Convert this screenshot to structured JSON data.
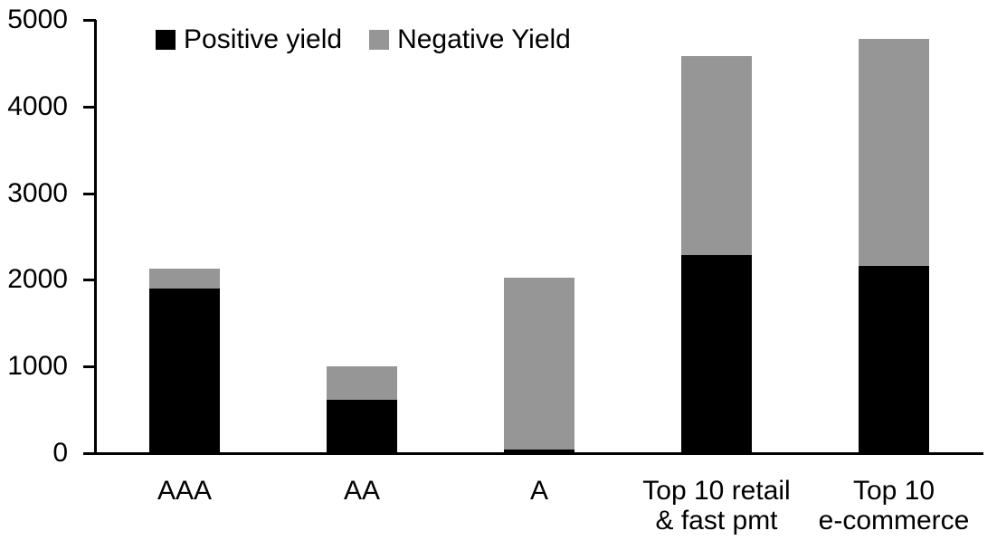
{
  "chart_data": {
    "type": "bar",
    "stacked": true,
    "title": "",
    "xlabel": "",
    "ylabel": "",
    "categories": [
      "AAA",
      "AA",
      "A",
      "Top 10 retail & fast pmt",
      "Top 10 e-commerce"
    ],
    "category_label_lines": [
      [
        "AAA"
      ],
      [
        "AA"
      ],
      [
        "A"
      ],
      [
        "Top 10 retail",
        "& fast pmt"
      ],
      [
        "Top 10",
        "e-commerce"
      ]
    ],
    "series": [
      {
        "name": "Positive yield",
        "color": "#000000",
        "values": [
          1900,
          620,
          45,
          2290,
          2160
        ]
      },
      {
        "name": "Negative Yield",
        "color": "#969696",
        "values": [
          230,
          385,
          1985,
          2290,
          2620
        ]
      }
    ],
    "stack_totals": [
      2130,
      1005,
      2030,
      4580,
      4780
    ],
    "ylim": [
      0,
      5000
    ],
    "yticks": [
      0,
      1000,
      2000,
      3000,
      4000,
      5000
    ],
    "grid": false,
    "legend_position": "top",
    "colors": {
      "axis": "#000000",
      "text": "#000000",
      "background": "#ffffff"
    }
  }
}
